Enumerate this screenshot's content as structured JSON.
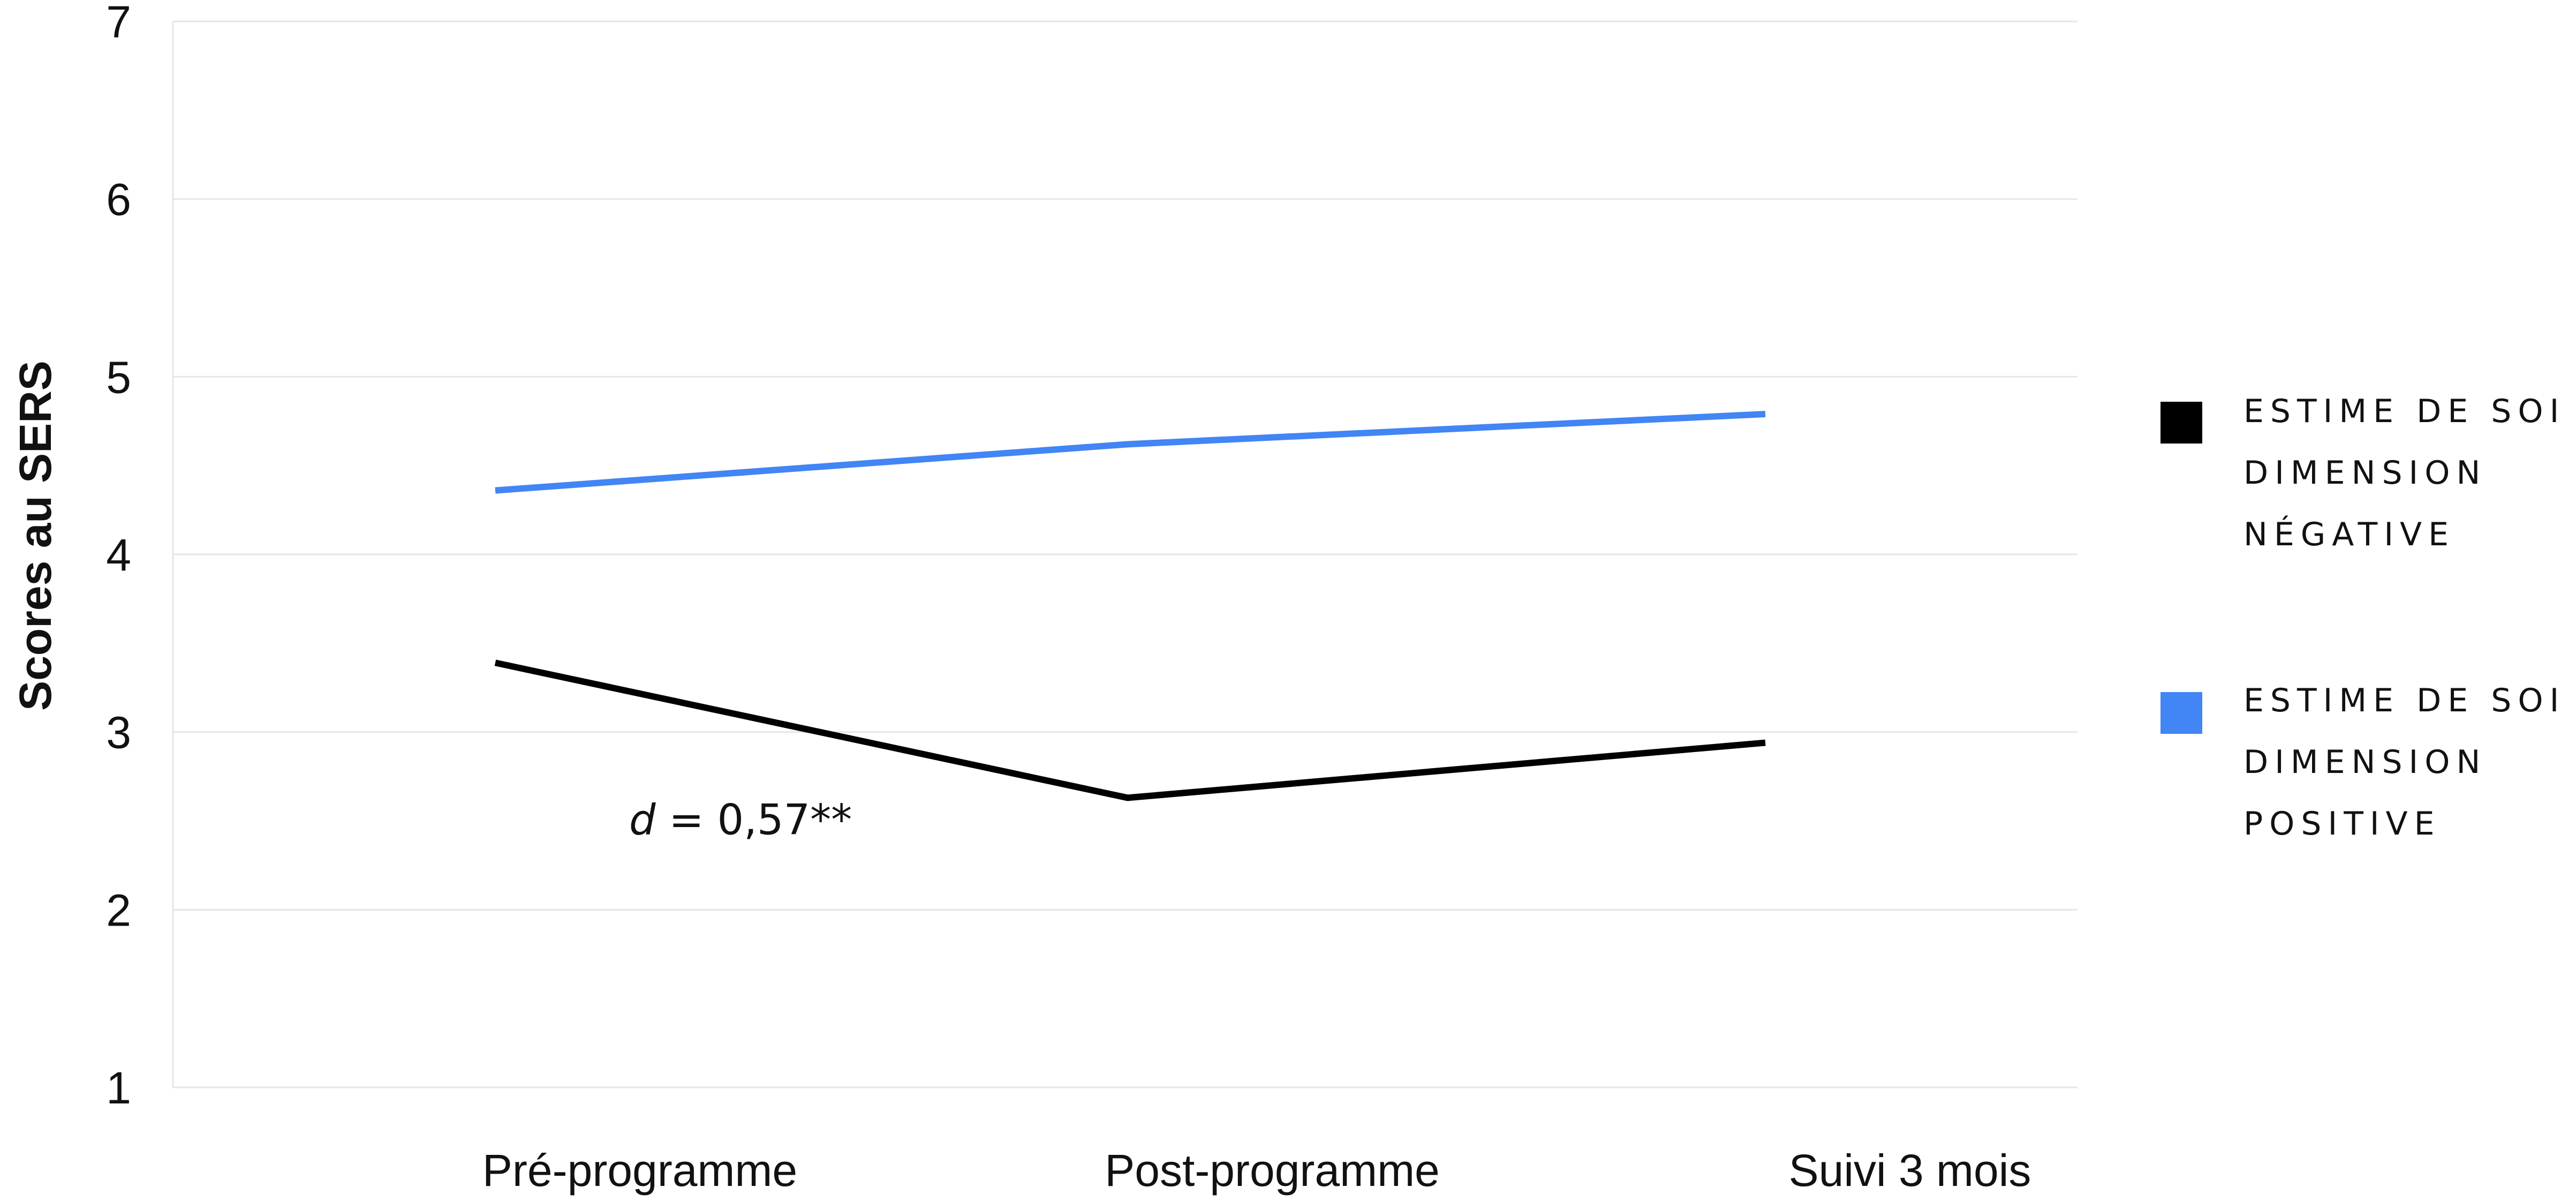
{
  "chart_data": {
    "type": "line",
    "title": "",
    "xlabel": "",
    "ylabel": "Scores au SERS",
    "categories": [
      "Pré-programme",
      "Post-programme",
      "Suivi 3 mois"
    ],
    "ylim": [
      1,
      7
    ],
    "yticks": [
      1,
      2,
      3,
      4,
      5,
      6,
      7
    ],
    "grid": true,
    "legend_position": "right",
    "series": [
      {
        "name": "ESTIME DE SOI DIMENSION NÉGATIVE",
        "legend_lines": [
          "ESTIME DE SOI",
          "DIMENSION",
          "NÉGATIVE"
        ],
        "color": "#000000",
        "values": [
          3.39,
          2.63,
          2.94
        ]
      },
      {
        "name": "ESTIME DE SOI DIMENSION POSITIVE",
        "legend_lines": [
          "ESTIME DE SOI",
          "DIMENSION",
          "POSITIVE"
        ],
        "color": "#4285f4",
        "values": [
          4.36,
          4.62,
          4.79
        ]
      }
    ],
    "annotations": [
      {
        "italic": "d",
        "text": " = 0,57**",
        "category": "Pré-programme",
        "y": 2.5
      }
    ]
  }
}
